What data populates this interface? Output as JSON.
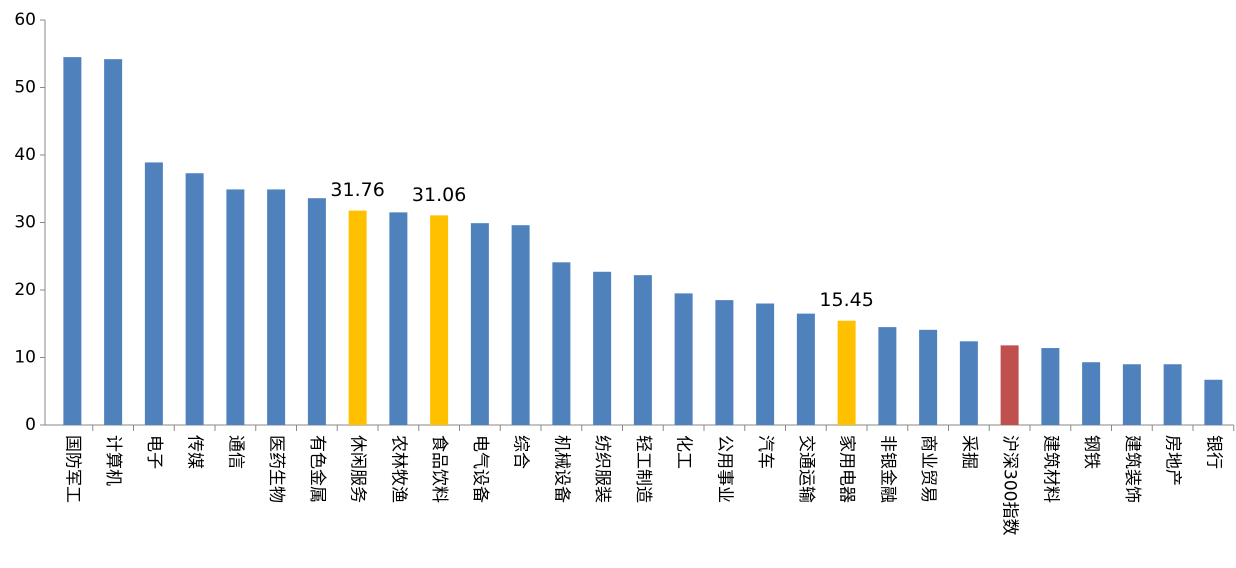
{
  "chart_data": {
    "type": "bar",
    "categories": [
      "国防军工",
      "计算机",
      "电子",
      "传媒",
      "通信",
      "医药生物",
      "有色金属",
      "休闲服务",
      "农林牧渔",
      "食品饮料",
      "电气设备",
      "综合",
      "机械设备",
      "纺织服装",
      "轻工制造",
      "化工",
      "公用事业",
      "汽车",
      "交通运输",
      "家用电器",
      "非银金融",
      "商业贸易",
      "采掘",
      "沪深300指数",
      "建筑材料",
      "钢铁",
      "建筑装饰",
      "房地产",
      "银行"
    ],
    "values": [
      54.5,
      54.2,
      38.9,
      37.3,
      34.9,
      34.9,
      33.6,
      31.76,
      31.5,
      31.06,
      29.9,
      29.6,
      24.1,
      22.7,
      22.2,
      19.5,
      18.5,
      18.0,
      16.5,
      15.45,
      14.5,
      14.1,
      12.4,
      11.8,
      11.4,
      9.3,
      9.0,
      9.0,
      6.7
    ],
    "value_labels": [
      null,
      null,
      null,
      null,
      null,
      null,
      null,
      "31.76",
      null,
      "31.06",
      null,
      null,
      null,
      null,
      null,
      null,
      null,
      null,
      null,
      "15.45",
      null,
      null,
      null,
      null,
      null,
      null,
      null,
      null,
      null
    ],
    "colors": [
      "#4f81bd",
      "#4f81bd",
      "#4f81bd",
      "#4f81bd",
      "#4f81bd",
      "#4f81bd",
      "#4f81bd",
      "#ffc000",
      "#4f81bd",
      "#ffc000",
      "#4f81bd",
      "#4f81bd",
      "#4f81bd",
      "#4f81bd",
      "#4f81bd",
      "#4f81bd",
      "#4f81bd",
      "#4f81bd",
      "#4f81bd",
      "#ffc000",
      "#4f81bd",
      "#4f81bd",
      "#4f81bd",
      "#c0504d",
      "#4f81bd",
      "#4f81bd",
      "#4f81bd",
      "#4f81bd",
      "#4f81bd"
    ],
    "ylim": [
      0,
      60
    ],
    "yticks": [
      0,
      10,
      20,
      30,
      40,
      50,
      60
    ],
    "grid": false
  }
}
